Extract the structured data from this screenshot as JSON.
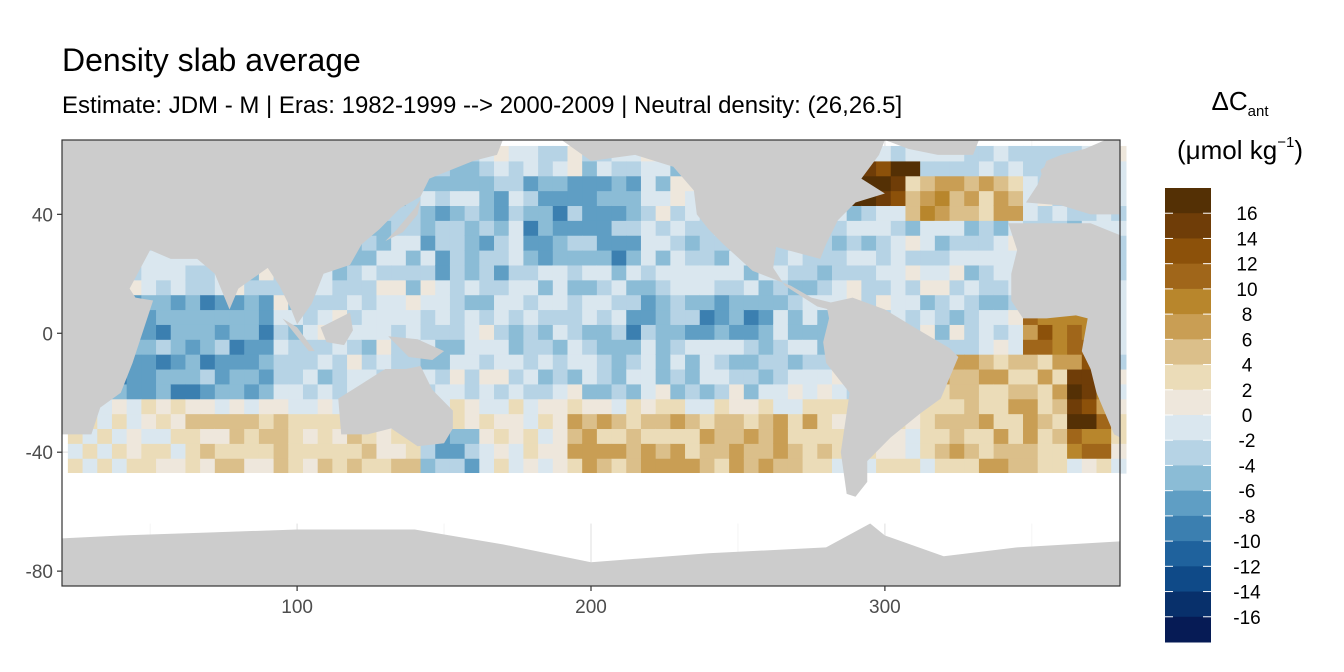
{
  "chart_data": {
    "type": "heatmap",
    "title": "Density slab average",
    "subtitle": "Estimate: JDM - M | Eras: 1982-1999 --> 2000-2009 | Neutral density: (26,26.5]",
    "legend_title_main": "ΔC",
    "legend_title_sub": "ant",
    "legend_unit_main": "(μmol kg",
    "legend_unit_sup": "−1",
    "legend_unit_close": ")",
    "legend_placement": "right",
    "xlim": [
      20,
      380
    ],
    "ylim": [
      -85,
      65
    ],
    "x_ticks": [
      100,
      200,
      300
    ],
    "y_ticks": [
      40,
      0,
      -40,
      -80
    ],
    "color_scale": {
      "breaks": [
        16,
        14,
        12,
        10,
        8,
        6,
        4,
        2,
        0,
        -2,
        -4,
        -6,
        -8,
        -10,
        -12,
        -14,
        -16
      ],
      "colors": [
        "#543005",
        "#6f3d08",
        "#8c510a",
        "#a0661a",
        "#b8862c",
        "#c99e54",
        "#dbbf8a",
        "#ebdcb8",
        "#eee7dc",
        "#dae7ef",
        "#b6d3e5",
        "#8bbcd6",
        "#5f9ec4",
        "#3b7fb0",
        "#1f629d",
        "#0f4a88",
        "#08306b",
        "#061b55"
      ],
      "land_color": "#cccccc",
      "missing_color": "#ffffff"
    },
    "grid": true,
    "value_regions": [
      {
        "lon": [
          345,
          375
        ],
        "lat": [
          -40,
          20
        ],
        "value": 10
      },
      {
        "lon": [
          355,
          372
        ],
        "lat": [
          -30,
          -10
        ],
        "value": 16
      },
      {
        "lon": [
          280,
          310
        ],
        "lat": [
          45,
          60
        ],
        "value": 16
      },
      {
        "lon": [
          305,
          345
        ],
        "lat": [
          40,
          55
        ],
        "value": 6
      },
      {
        "lon": [
          315,
          360
        ],
        "lat": [
          -45,
          -5
        ],
        "value": 5
      },
      {
        "lon": [
          190,
          280
        ],
        "lat": [
          -48,
          -25
        ],
        "value": 5
      },
      {
        "lon": [
          60,
          150
        ],
        "lat": [
          -45,
          -25
        ],
        "value": 3
      },
      {
        "lon": [
          100,
          170
        ],
        "lat": [
          20,
          60
        ],
        "value": -4
      },
      {
        "lon": [
          175,
          215
        ],
        "lat": [
          25,
          55
        ],
        "value": -6
      },
      {
        "lon": [
          170,
          280
        ],
        "lat": [
          -15,
          20
        ],
        "value": -3
      },
      {
        "lon": [
          30,
          90
        ],
        "lat": [
          -20,
          15
        ],
        "value": -6
      },
      {
        "lon": [
          300,
          345
        ],
        "lat": [
          15,
          35
        ],
        "value": -2
      },
      {
        "lon": [
          210,
          260
        ],
        "lat": [
          0,
          15
        ],
        "value": -6
      },
      {
        "lon": [
          140,
          160
        ],
        "lat": [
          -45,
          -30
        ],
        "value": -5
      }
    ]
  }
}
